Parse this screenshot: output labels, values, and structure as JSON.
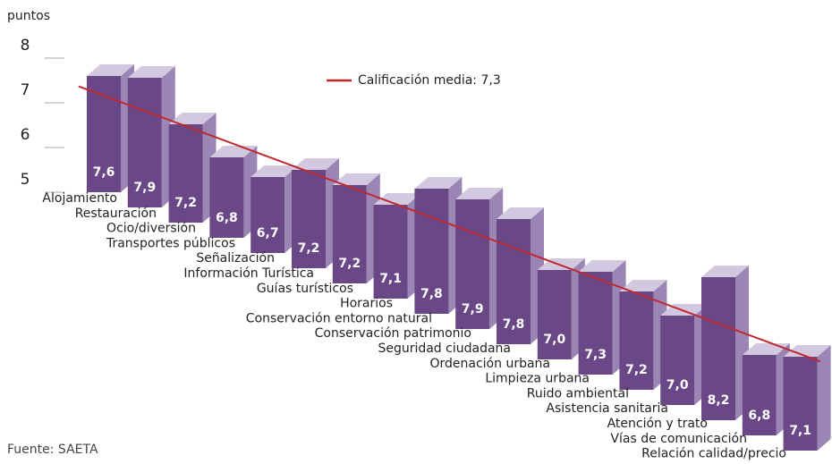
{
  "chart_data": {
    "type": "bar3d_staircase",
    "y_label": "puntos",
    "source": "Fuente: SAETA",
    "categories": [
      "Alojamiento",
      "Restauración",
      "Ocio/diversión",
      "Transportes públicos",
      "Señalización",
      "Información Turística",
      "Guías turísticos",
      "Horarios",
      "Conservación entorno natural",
      "Conservación patrimonio",
      "Seguridad ciudadana",
      "Ordenación urbana",
      "Limpieza urbana",
      "Ruido ambiental",
      "Asistencia sanitaria",
      "Atención y trato",
      "Vías de comunicación",
      "Relación calidad/precio"
    ],
    "values": [
      7.6,
      7.9,
      7.2,
      6.8,
      6.7,
      7.2,
      7.2,
      7.1,
      7.8,
      7.9,
      7.8,
      7.0,
      7.3,
      7.2,
      7.0,
      8.2,
      6.8,
      7.1
    ],
    "value_labels": [
      "7,6",
      "7,9",
      "7,2",
      "6,8",
      "6,7",
      "7,2",
      "7,2",
      "7,1",
      "7,8",
      "7,9",
      "7,8",
      "7,0",
      "7,3",
      "7,2",
      "7,0",
      "8,2",
      "6,8",
      "7,1"
    ],
    "average": 7.3,
    "average_label": "Calificación media: 7,3",
    "average_color": "#c0282d",
    "colors": {
      "front": "#6a4787",
      "side": "#9a85b5",
      "top": "#d2c8e0"
    },
    "ylim": [
      5,
      8
    ],
    "yticks": [
      5,
      6,
      7,
      8
    ]
  }
}
